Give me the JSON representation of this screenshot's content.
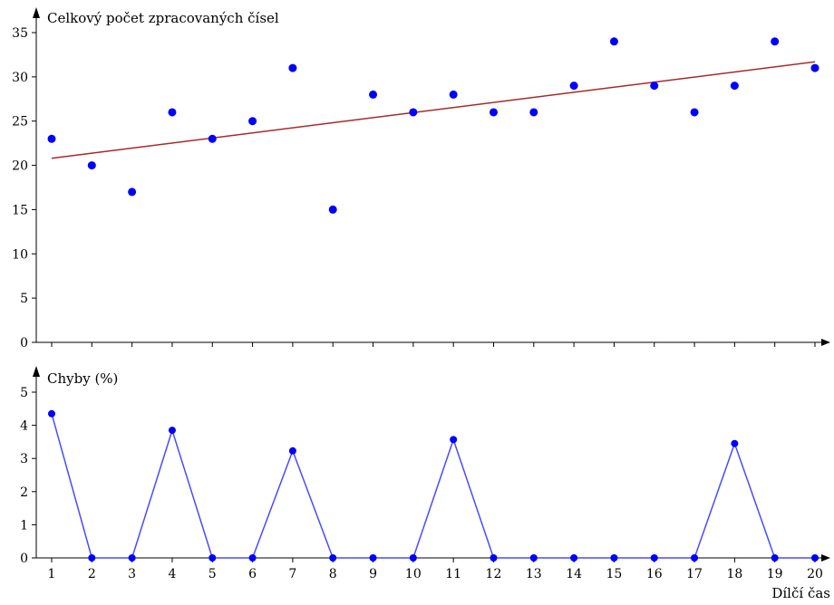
{
  "chart_data": [
    {
      "type": "scatter",
      "ylabel": "Celkový počet zpracovaných čísel",
      "xlim": [
        1,
        20
      ],
      "ylim": [
        0,
        35
      ],
      "x_ticks": [
        1,
        2,
        3,
        4,
        5,
        6,
        7,
        8,
        9,
        10,
        11,
        12,
        13,
        14,
        15,
        16,
        17,
        18,
        19,
        20
      ],
      "y_ticks": [
        0,
        5,
        10,
        15,
        20,
        25,
        30,
        35
      ],
      "x": [
        1,
        2,
        3,
        4,
        5,
        6,
        7,
        8,
        9,
        10,
        11,
        12,
        13,
        14,
        15,
        16,
        17,
        18,
        19,
        20
      ],
      "values": [
        23,
        20,
        17,
        26,
        23,
        25,
        31,
        15,
        28,
        26,
        28,
        26,
        26,
        29,
        34,
        29,
        26,
        29,
        34,
        31
      ],
      "trendline": {
        "x": [
          1,
          20
        ],
        "y": [
          20.8,
          31.7
        ]
      },
      "colors": {
        "points": "#0000ff",
        "trendline": "#a52a2a"
      },
      "grid": false
    },
    {
      "type": "line",
      "ylabel": "Chyby (%)",
      "xlabel": "Dílčí čas",
      "xlim": [
        1,
        20
      ],
      "ylim": [
        0,
        5
      ],
      "x_ticks": [
        1,
        2,
        3,
        4,
        5,
        6,
        7,
        8,
        9,
        10,
        11,
        12,
        13,
        14,
        15,
        16,
        17,
        18,
        19,
        20
      ],
      "y_ticks": [
        0,
        1,
        2,
        3,
        4,
        5
      ],
      "x": [
        1,
        2,
        3,
        4,
        5,
        6,
        7,
        8,
        9,
        10,
        11,
        12,
        13,
        14,
        15,
        16,
        17,
        18,
        19,
        20
      ],
      "values": [
        4.35,
        0,
        0,
        3.85,
        0,
        0,
        3.23,
        0,
        0,
        0,
        3.57,
        0,
        0,
        0,
        0,
        0,
        0,
        3.45,
        0,
        0
      ],
      "colors": {
        "line": "#4a4aff",
        "points": "#0000ff"
      },
      "grid": false
    }
  ]
}
